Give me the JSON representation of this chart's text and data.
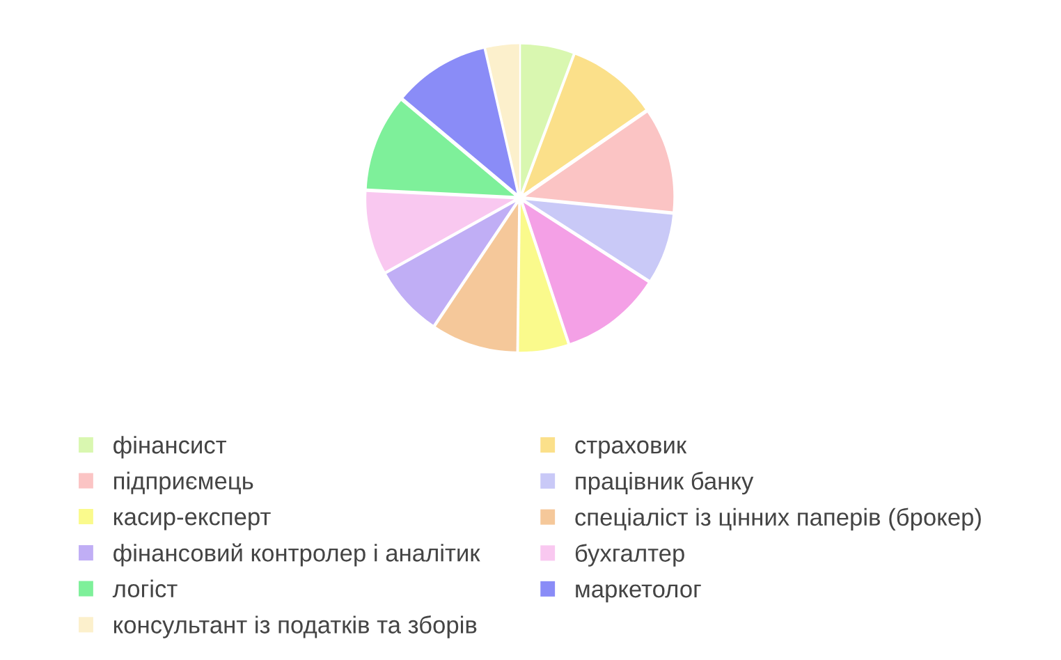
{
  "chart_data": {
    "type": "pie",
    "legend": "bottom",
    "categories": [
      "фінансист",
      "страховик",
      "підприємець",
      "працівник банку",
      null,
      "касир-експерт",
      "спеціаліст із цінних паперів (брокер)",
      "фінансовий контролер і аналітик",
      "бухгалтер",
      "логіст",
      "маркетолог",
      "консультант із податків та зборів"
    ],
    "values": [
      5.7,
      9.7,
      11.2,
      7.5,
      10.8,
      5.3,
      9.2,
      7.5,
      8.9,
      10.3,
      10.3,
      3.6
    ],
    "colors": [
      "#d9f7b0",
      "#fbe08a",
      "#fbc4c4",
      "#c9c9f7",
      "#f4a0e6",
      "#fafa8c",
      "#f5c89a",
      "#c0aef5",
      "#f9c8f0",
      "#7ef09a",
      "#8a8cf7",
      "#fcf0cc"
    ]
  }
}
